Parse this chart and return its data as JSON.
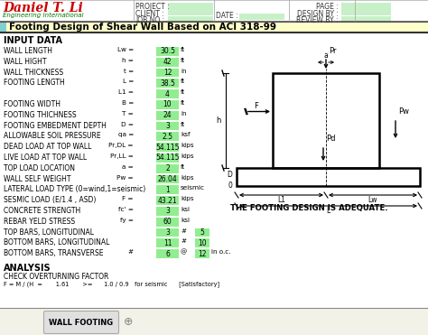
{
  "bg_color": "#f2f2e8",
  "white": "#ffffff",
  "title_text": "Footing Design of Shear Wall Based on ACI 318-99",
  "title_bg": "#ffffcc",
  "title_cyan": "#80d0d0",
  "tab_text": "WALL FOOTING",
  "tab_bg": "#d8d8d8",
  "company_name": "Daniel T. Li",
  "company_sub": "Engineering International",
  "header_labels": [
    "PROJECT :",
    "CLIENT :",
    "JOB NO :"
  ],
  "header_right": [
    "PAGE :",
    "DESIGN BY :",
    "REVIEW BY :"
  ],
  "date_label": "DATE :",
  "input_data_title": "INPUT DATA",
  "rows": [
    [
      "WALL LENGTH",
      "Lw =",
      "30.5",
      "ft",
      true
    ],
    [
      "WALL HIGHT",
      "h =",
      "42",
      "ft",
      true
    ],
    [
      "WALL THICKNESS",
      "t =",
      "12",
      "in",
      true
    ],
    [
      "FOOTING LENGTH",
      "L =",
      "38.5",
      "ft",
      true
    ],
    [
      "",
      "L1 =",
      "4",
      "ft",
      true
    ],
    [
      "FOOTING WIDTH",
      "B =",
      "10",
      "ft",
      true
    ],
    [
      "FOOTING THICHNESS",
      "T =",
      "24",
      "in",
      true
    ],
    [
      "FOOTING EMBEDMENT DEPTH",
      "D =",
      "3",
      "ft",
      true
    ],
    [
      "ALLOWABLE SOIL PRESSURE",
      "qa =",
      "2.5",
      "ksf",
      true
    ],
    [
      "DEAD LOAD AT TOP WALL",
      "Pr,DL =",
      "54.115",
      "kips",
      true
    ],
    [
      "LIVE LOAD AT TOP WALL",
      "Pr,LL =",
      "54.115",
      "kips",
      true
    ],
    [
      "TOP LOAD LOCATION",
      "a =",
      "2",
      "ft",
      true
    ],
    [
      "WALL SELF WEIGHT",
      "Pw =",
      "26.04",
      "kips",
      true
    ],
    [
      "LATERAL LOAD TYPE (0=wind,1=seismic)",
      "",
      "1",
      "seismic",
      true
    ],
    [
      "SESMIC LOAD (E/1.4 , ASD)",
      "F =",
      "43.21",
      "kips",
      true
    ],
    [
      "CONCRETE STRENGTH",
      "fc' =",
      "3",
      "ksi",
      true
    ],
    [
      "REBAR YELD STRESS",
      "fy =",
      "60",
      "ksi",
      true
    ],
    [
      "TOP BARS, LONGITUDINAL",
      "",
      "3",
      "#",
      true
    ],
    [
      "BOTTOM BARS, LONGITUDINAL",
      "",
      "11",
      "#",
      true
    ],
    [
      "BOTTOM BARS, TRANSVERSE",
      "#",
      "6",
      "@",
      true
    ]
  ],
  "rebar_sizes": [
    "5",
    "10",
    "12"
  ],
  "rebar_extra_unit": [
    "",
    "",
    "in o.c."
  ],
  "analysis_title": "ANALYSIS",
  "analysis_sub": "CHECK OVERTURNING FACTOR",
  "analysis_line": "F = M / (H  =       1.61       >=      1.0 / 0.9   for seismic      [Satisfactory]",
  "adequate_text": "THE FOOTING DESIGN IS ADEQUATE.",
  "green_cell": "#90ee90",
  "light_green": "#c8f0c8",
  "header_line_color": "#999999"
}
